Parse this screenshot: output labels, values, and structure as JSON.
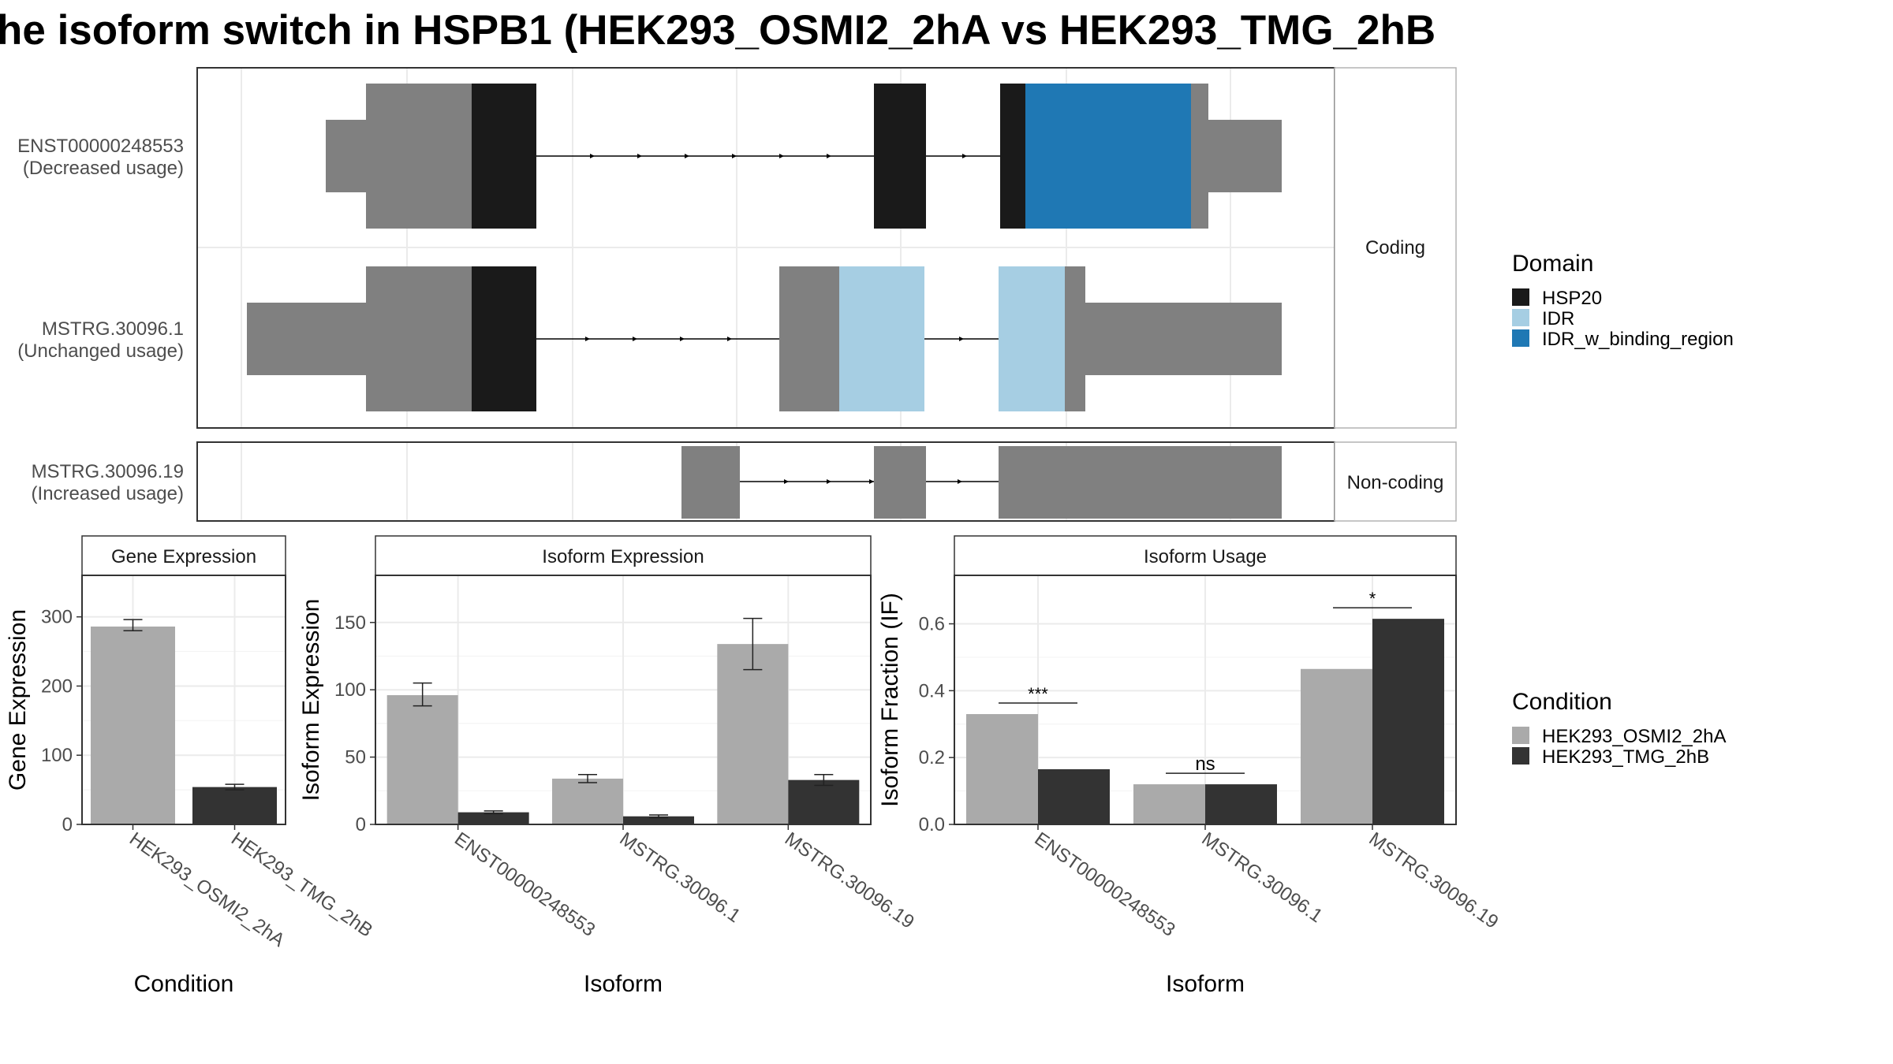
{
  "title": "he isoform switch in HSPB1 (HEK293_OSMI2_2hA vs HEK293_TMG_2hB",
  "colors": {
    "utr": "#808080",
    "hsp20": "#1a1a1a",
    "idr": "#a6cee3",
    "idr_w_binding_region": "#1f78b4",
    "cond_a": "#aaaaaa",
    "cond_b": "#333333",
    "grid": "#ebebeb",
    "strip_bg": "#ffffff",
    "strip_border": "#b3b3b3"
  },
  "structure": {
    "groups": [
      "Coding",
      "Non-coding"
    ],
    "transcripts": [
      {
        "id": "tx-1",
        "label_line1": "ENST00000248553",
        "label_line2": "(Decreased usage)",
        "group": "Coding"
      },
      {
        "id": "tx-2",
        "label_line1": "MSTRG.30096.1",
        "label_line2": "(Unchanged usage)",
        "group": "Coding"
      },
      {
        "id": "tx-3",
        "label_line1": "MSTRG.30096.19",
        "label_line2": "(Increased usage)",
        "group": "Non-coding"
      }
    ]
  },
  "legend_domain": {
    "title": "Domain",
    "items": [
      {
        "label": "HSP20",
        "color": "#1a1a1a"
      },
      {
        "label": "IDR",
        "color": "#a6cee3"
      },
      {
        "label": "IDR_w_binding_region",
        "color": "#1f78b4"
      }
    ]
  },
  "legend_condition": {
    "title": "Condition",
    "items": [
      {
        "label": "HEK293_OSMI2_2hA",
        "color": "#aaaaaa"
      },
      {
        "label": "HEK293_TMG_2hB",
        "color": "#333333"
      }
    ]
  },
  "chart_data": [
    {
      "type": "bar",
      "title": "Gene Expression",
      "xlabel": "Condition",
      "ylabel": "Gene Expression",
      "ylim": [
        0,
        360
      ],
      "yticks": [
        0,
        100,
        200,
        300
      ],
      "categories": [
        "HEK293_OSMI2_2hA",
        "HEK293_TMG_2hB"
      ],
      "values": [
        286,
        54
      ],
      "errors": [
        [
          280,
          296
        ],
        [
          50,
          58
        ]
      ],
      "colors": [
        "#aaaaaa",
        "#333333"
      ]
    },
    {
      "type": "bar",
      "title": "Isoform Expression",
      "xlabel": "Isoform",
      "ylabel": "Isoform Expression",
      "ylim": [
        0,
        185
      ],
      "yticks": [
        0,
        50,
        100,
        150
      ],
      "categories": [
        "ENST00000248553",
        "MSTRG.30096.1",
        "MSTRG.30096.19"
      ],
      "series": [
        {
          "values": [
            96,
            34,
            134
          ],
          "errors": [
            [
              88,
              105
            ],
            [
              31,
              37
            ],
            [
              115,
              153
            ]
          ],
          "color": "#aaaaaa"
        },
        {
          "values": [
            9,
            6,
            33
          ],
          "errors": [
            [
              8,
              10
            ],
            [
              5,
              7
            ],
            [
              29,
              37
            ]
          ],
          "color": "#333333"
        }
      ]
    },
    {
      "type": "bar",
      "title": "Isoform Usage",
      "xlabel": "Isoform",
      "ylabel": "Isoform Fraction (IF)",
      "ylim": [
        0,
        0.745
      ],
      "yticks": [
        "0.0",
        "0.2",
        "0.4",
        "0.6"
      ],
      "categories": [
        "ENST00000248553",
        "MSTRG.30096.1",
        "MSTRG.30096.19"
      ],
      "series": [
        {
          "values": [
            0.33,
            0.12,
            0.465
          ],
          "color": "#aaaaaa"
        },
        {
          "values": [
            0.165,
            0.12,
            0.615
          ],
          "color": "#333333"
        }
      ],
      "significance": [
        "***",
        "ns",
        "*"
      ]
    }
  ]
}
